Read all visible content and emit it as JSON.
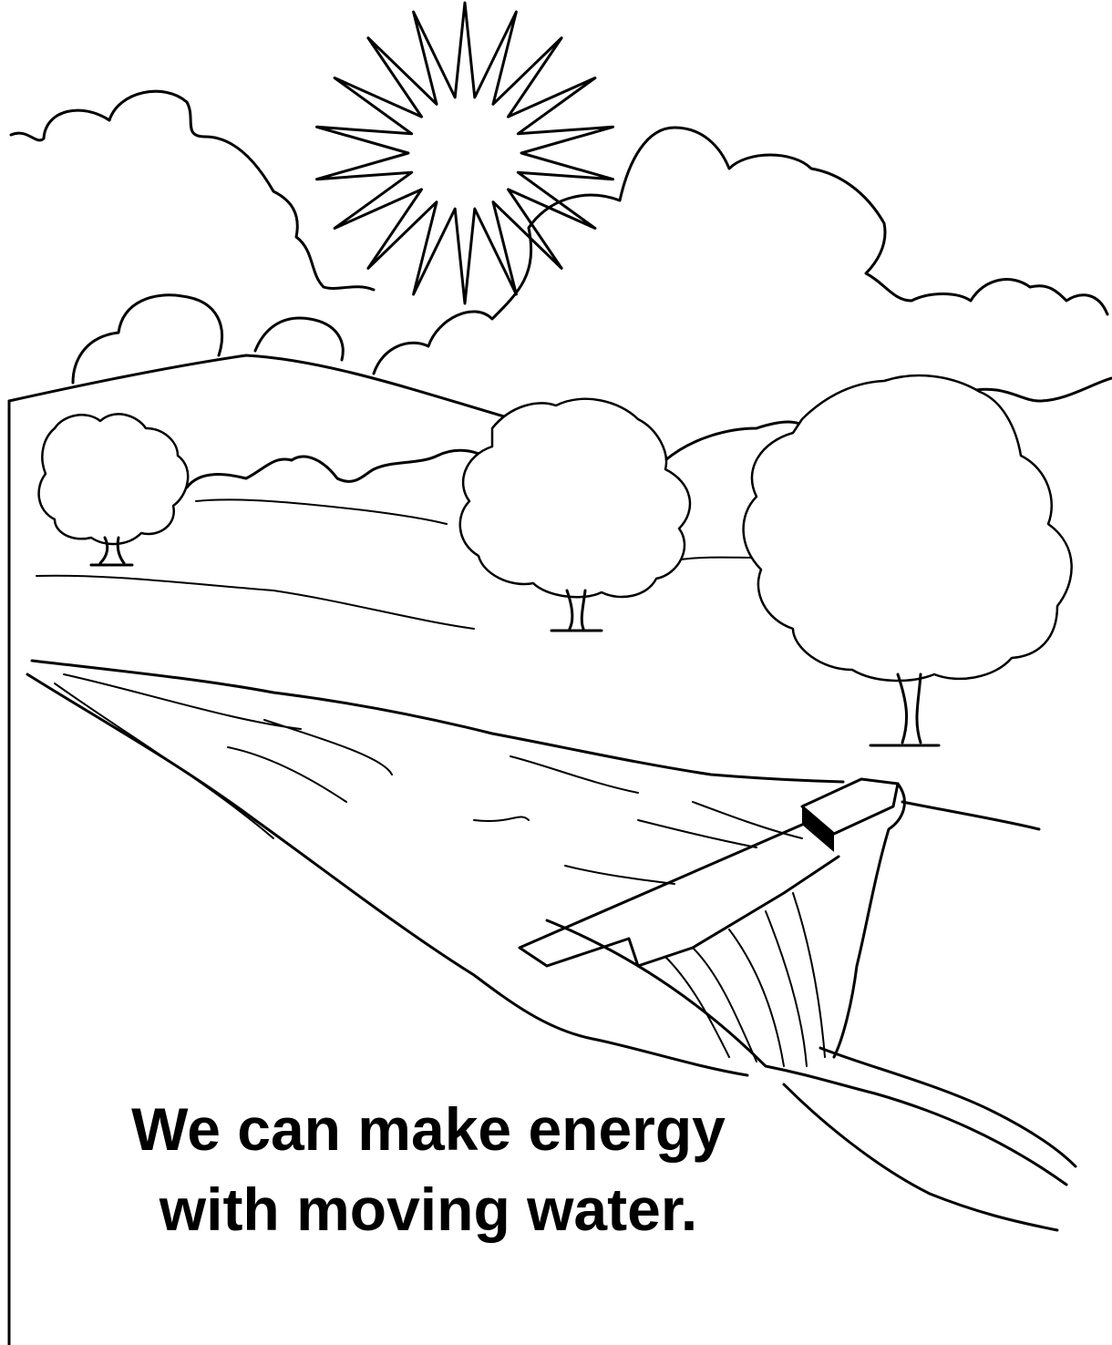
{
  "caption": {
    "lines": [
      "We can make energy",
      "with moving water."
    ]
  }
}
